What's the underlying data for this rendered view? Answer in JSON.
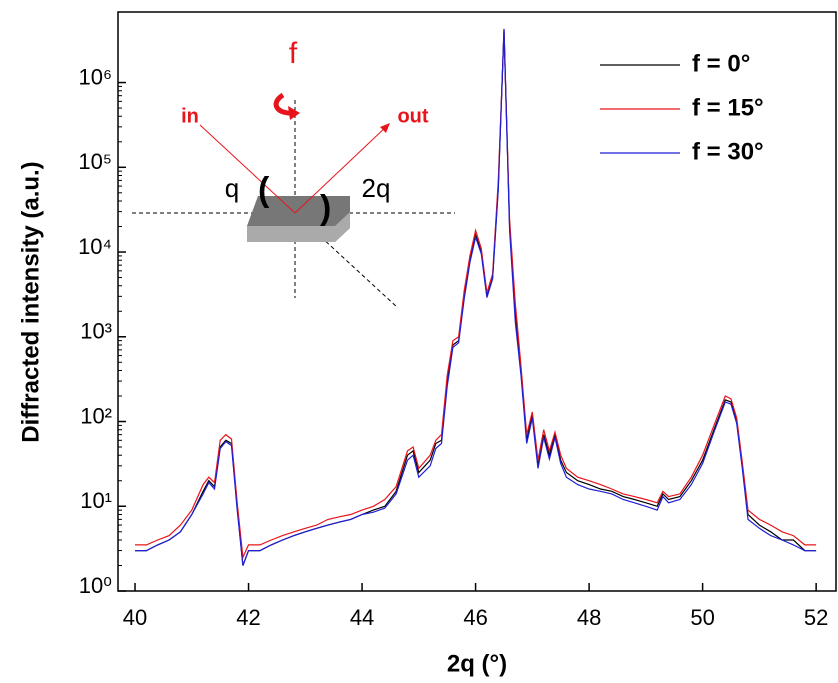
{
  "chart_data": {
    "type": "line",
    "xlabel": "2q (°)",
    "ylabel": "Diffracted intensity (a.u.)",
    "log_y": true,
    "xlim": [
      39.7,
      52.35
    ],
    "ylim": [
      1,
      6800000
    ],
    "xticks": [
      40,
      42,
      44,
      46,
      48,
      50,
      52
    ],
    "yticks": [
      {
        "value": 1,
        "label": "10⁰"
      },
      {
        "value": 10,
        "label": "10¹"
      },
      {
        "value": 100,
        "label": "10²"
      },
      {
        "value": 1000,
        "label": "10³"
      },
      {
        "value": 10000,
        "label": "10⁴"
      },
      {
        "value": 100000,
        "label": "10⁵"
      },
      {
        "value": 1000000,
        "label": "10⁶"
      }
    ],
    "legend_position": "upper right",
    "x": [
      40.0,
      40.2,
      40.4,
      40.6,
      40.8,
      41.0,
      41.2,
      41.3,
      41.4,
      41.5,
      41.6,
      41.7,
      41.8,
      41.9,
      42.0,
      42.2,
      42.4,
      42.6,
      42.8,
      43.0,
      43.2,
      43.4,
      43.6,
      43.8,
      44.0,
      44.2,
      44.4,
      44.6,
      44.8,
      44.9,
      45.0,
      45.2,
      45.3,
      45.4,
      45.5,
      45.6,
      45.7,
      45.8,
      45.9,
      46.0,
      46.1,
      46.2,
      46.3,
      46.4,
      46.5,
      46.6,
      46.7,
      46.8,
      46.9,
      47.0,
      47.1,
      47.2,
      47.3,
      47.4,
      47.5,
      47.6,
      47.8,
      48.0,
      48.2,
      48.4,
      48.6,
      48.8,
      49.0,
      49.2,
      49.3,
      49.4,
      49.6,
      49.8,
      50.0,
      50.2,
      50.4,
      50.5,
      50.6,
      50.7,
      50.8,
      51.0,
      51.2,
      51.4,
      51.6,
      51.8,
      52.0
    ],
    "series": [
      {
        "name": "f = 0°",
        "color": "#000000",
        "values": [
          3,
          3,
          3.5,
          4,
          5,
          8,
          15,
          20,
          17,
          50,
          60,
          55,
          10,
          2,
          3,
          3,
          3.5,
          4,
          4.5,
          5,
          5.5,
          6,
          6.5,
          7,
          8,
          9,
          10,
          15,
          40,
          45,
          25,
          35,
          55,
          60,
          300,
          800,
          900,
          3000,
          8000,
          16000,
          10000,
          3000,
          5000,
          60000,
          4200000,
          20000,
          2000,
          400,
          60,
          120,
          30,
          70,
          40,
          70,
          35,
          25,
          20,
          18,
          16,
          15,
          13,
          12,
          11,
          10,
          14,
          12,
          13,
          20,
          35,
          80,
          180,
          170,
          100,
          30,
          8,
          6,
          5,
          4,
          4,
          3,
          3
        ]
      },
      {
        "name": "f = 15°",
        "color": "#e8141c",
        "values": [
          3.5,
          3.5,
          4,
          4.5,
          6,
          9,
          18,
          22,
          19,
          60,
          70,
          62,
          11,
          2.5,
          3.5,
          3.5,
          4,
          4.5,
          5,
          5.5,
          6,
          7,
          7.5,
          8,
          9,
          10,
          12,
          17,
          45,
          50,
          28,
          40,
          60,
          70,
          350,
          900,
          1000,
          3500,
          9000,
          18000,
          11000,
          3300,
          5500,
          70000,
          4000000,
          24000,
          2500,
          450,
          70,
          130,
          35,
          80,
          45,
          75,
          40,
          28,
          22,
          20,
          18,
          16,
          14,
          13,
          12,
          11,
          15,
          13,
          14,
          22,
          40,
          90,
          200,
          185,
          110,
          33,
          9,
          7,
          6,
          5,
          4.5,
          3.5,
          3.5
        ]
      },
      {
        "name": "f = 30°",
        "color": "#1f1fd6",
        "values": [
          3,
          3,
          3.5,
          4,
          5,
          8,
          14,
          19,
          16,
          48,
          58,
          52,
          9,
          2,
          3,
          3,
          3.5,
          4,
          4.5,
          5,
          5.5,
          6,
          6.5,
          7,
          8,
          8.5,
          9.5,
          14,
          35,
          40,
          22,
          30,
          48,
          55,
          260,
          750,
          850,
          2800,
          7500,
          15000,
          9500,
          2900,
          4800,
          55000,
          4300000,
          18000,
          1500,
          350,
          55,
          110,
          28,
          65,
          36,
          65,
          32,
          22,
          18,
          16,
          15,
          14,
          12,
          11,
          10,
          9,
          13,
          11,
          12,
          18,
          32,
          75,
          170,
          160,
          95,
          28,
          7,
          5.5,
          4.5,
          4,
          3.5,
          3,
          3
        ]
      }
    ],
    "annotations": {
      "rotation": "f",
      "incoming": "in",
      "outgoing": "out",
      "incidence_angle": "q",
      "scattering_angle": "2q"
    }
  }
}
